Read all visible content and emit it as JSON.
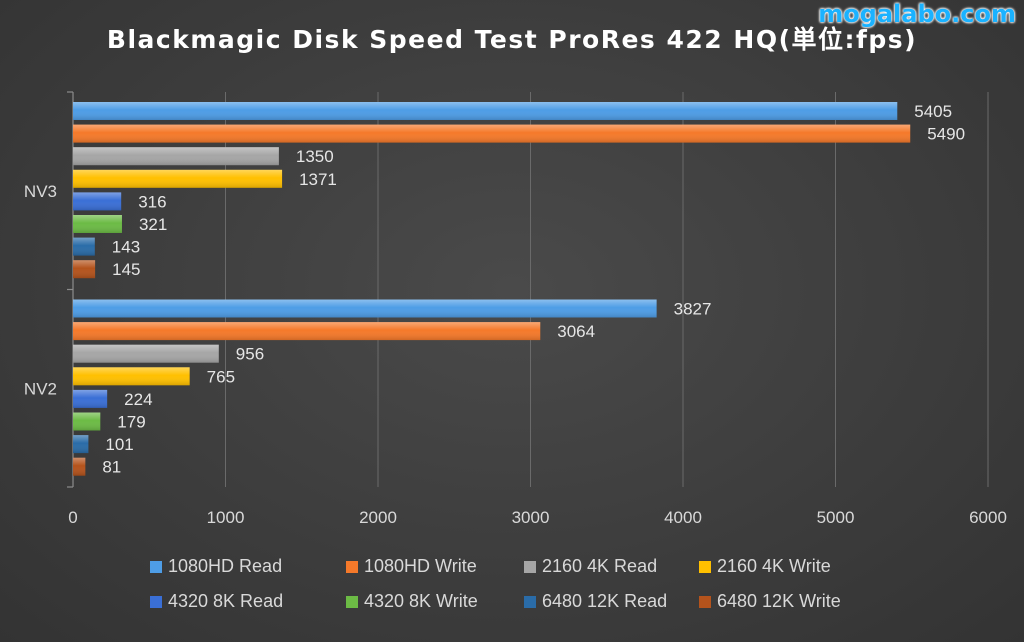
{
  "title": "Blackmagic Disk Speed Test ProRes 422 HQ(単位:fps)",
  "watermark": "mogalabo.com",
  "colors": {
    "1080HD Read": "#4e9de6",
    "1080HD Write": "#f5792a",
    "2160 4K Read": "#a6a6a6",
    "2160 4K Write": "#ffc000",
    "4320 8K Read": "#3a6fd6",
    "4320 8K Write": "#6cbb45",
    "6480 12K Read": "#2a6ca8",
    "6480 12K Write": "#b4531c"
  },
  "chart_data": {
    "type": "bar",
    "orientation": "horizontal",
    "categories": [
      "NV3",
      "NV2"
    ],
    "xlim": [
      0,
      6000
    ],
    "xticks": [
      0,
      1000,
      2000,
      3000,
      4000,
      5000,
      6000
    ],
    "grid": true,
    "legend_position": "bottom",
    "series": [
      {
        "name": "1080HD Read",
        "values": [
          5405,
          3827
        ]
      },
      {
        "name": "1080HD Write",
        "values": [
          5490,
          3064
        ]
      },
      {
        "name": "2160 4K Read",
        "values": [
          1350,
          956
        ]
      },
      {
        "name": "2160 4K Write",
        "values": [
          1371,
          765
        ]
      },
      {
        "name": "4320 8K Read",
        "values": [
          316,
          224
        ]
      },
      {
        "name": "4320 8K Write",
        "values": [
          321,
          179
        ]
      },
      {
        "name": "6480 12K Read",
        "values": [
          143,
          101
        ]
      },
      {
        "name": "6480 12K Write",
        "values": [
          145,
          81
        ]
      }
    ]
  }
}
